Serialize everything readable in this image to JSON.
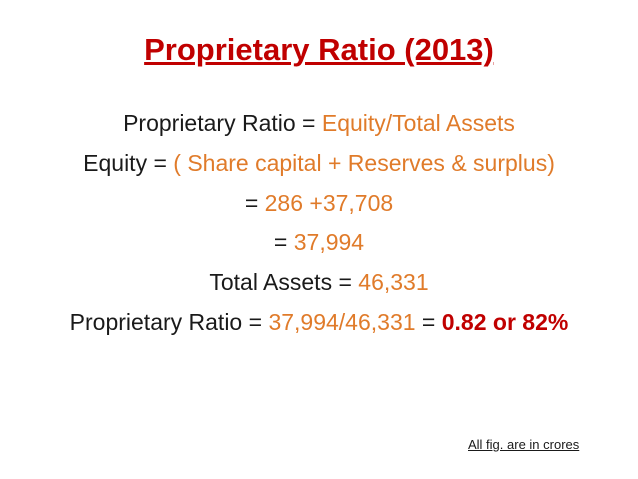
{
  "title": "Proprietary Ratio (2013)",
  "lines": [
    [
      {
        "text": "Proprietary Ratio = ",
        "color": "#1a1a1a"
      },
      {
        "text": "Equity/Total Assets",
        "color": "#e07b2a"
      }
    ],
    [
      {
        "text": "Equity = ",
        "color": "#1a1a1a"
      },
      {
        "text": "( Share capital + Reserves & surplus)",
        "color": "#e07b2a"
      }
    ],
    [
      {
        "text": "= ",
        "color": "#1a1a1a"
      },
      {
        "text": "286 +37,708",
        "color": "#e07b2a"
      }
    ],
    [
      {
        "text": "= ",
        "color": "#1a1a1a"
      },
      {
        "text": "37,994",
        "color": "#e07b2a"
      }
    ],
    [
      {
        "text": "Total Assets = ",
        "color": "#1a1a1a"
      },
      {
        "text": "46,331",
        "color": "#e07b2a"
      }
    ],
    [
      {
        "text": "Proprietary Ratio = ",
        "color": "#1a1a1a"
      },
      {
        "text": "37,994/46,331",
        "color": "#e07b2a"
      },
      {
        "text": " = ",
        "color": "#1a1a1a"
      },
      {
        "text": "0.82 or 82%",
        "color": "#c00000",
        "bold": true
      }
    ]
  ],
  "footnote": "All fig. are in crores"
}
